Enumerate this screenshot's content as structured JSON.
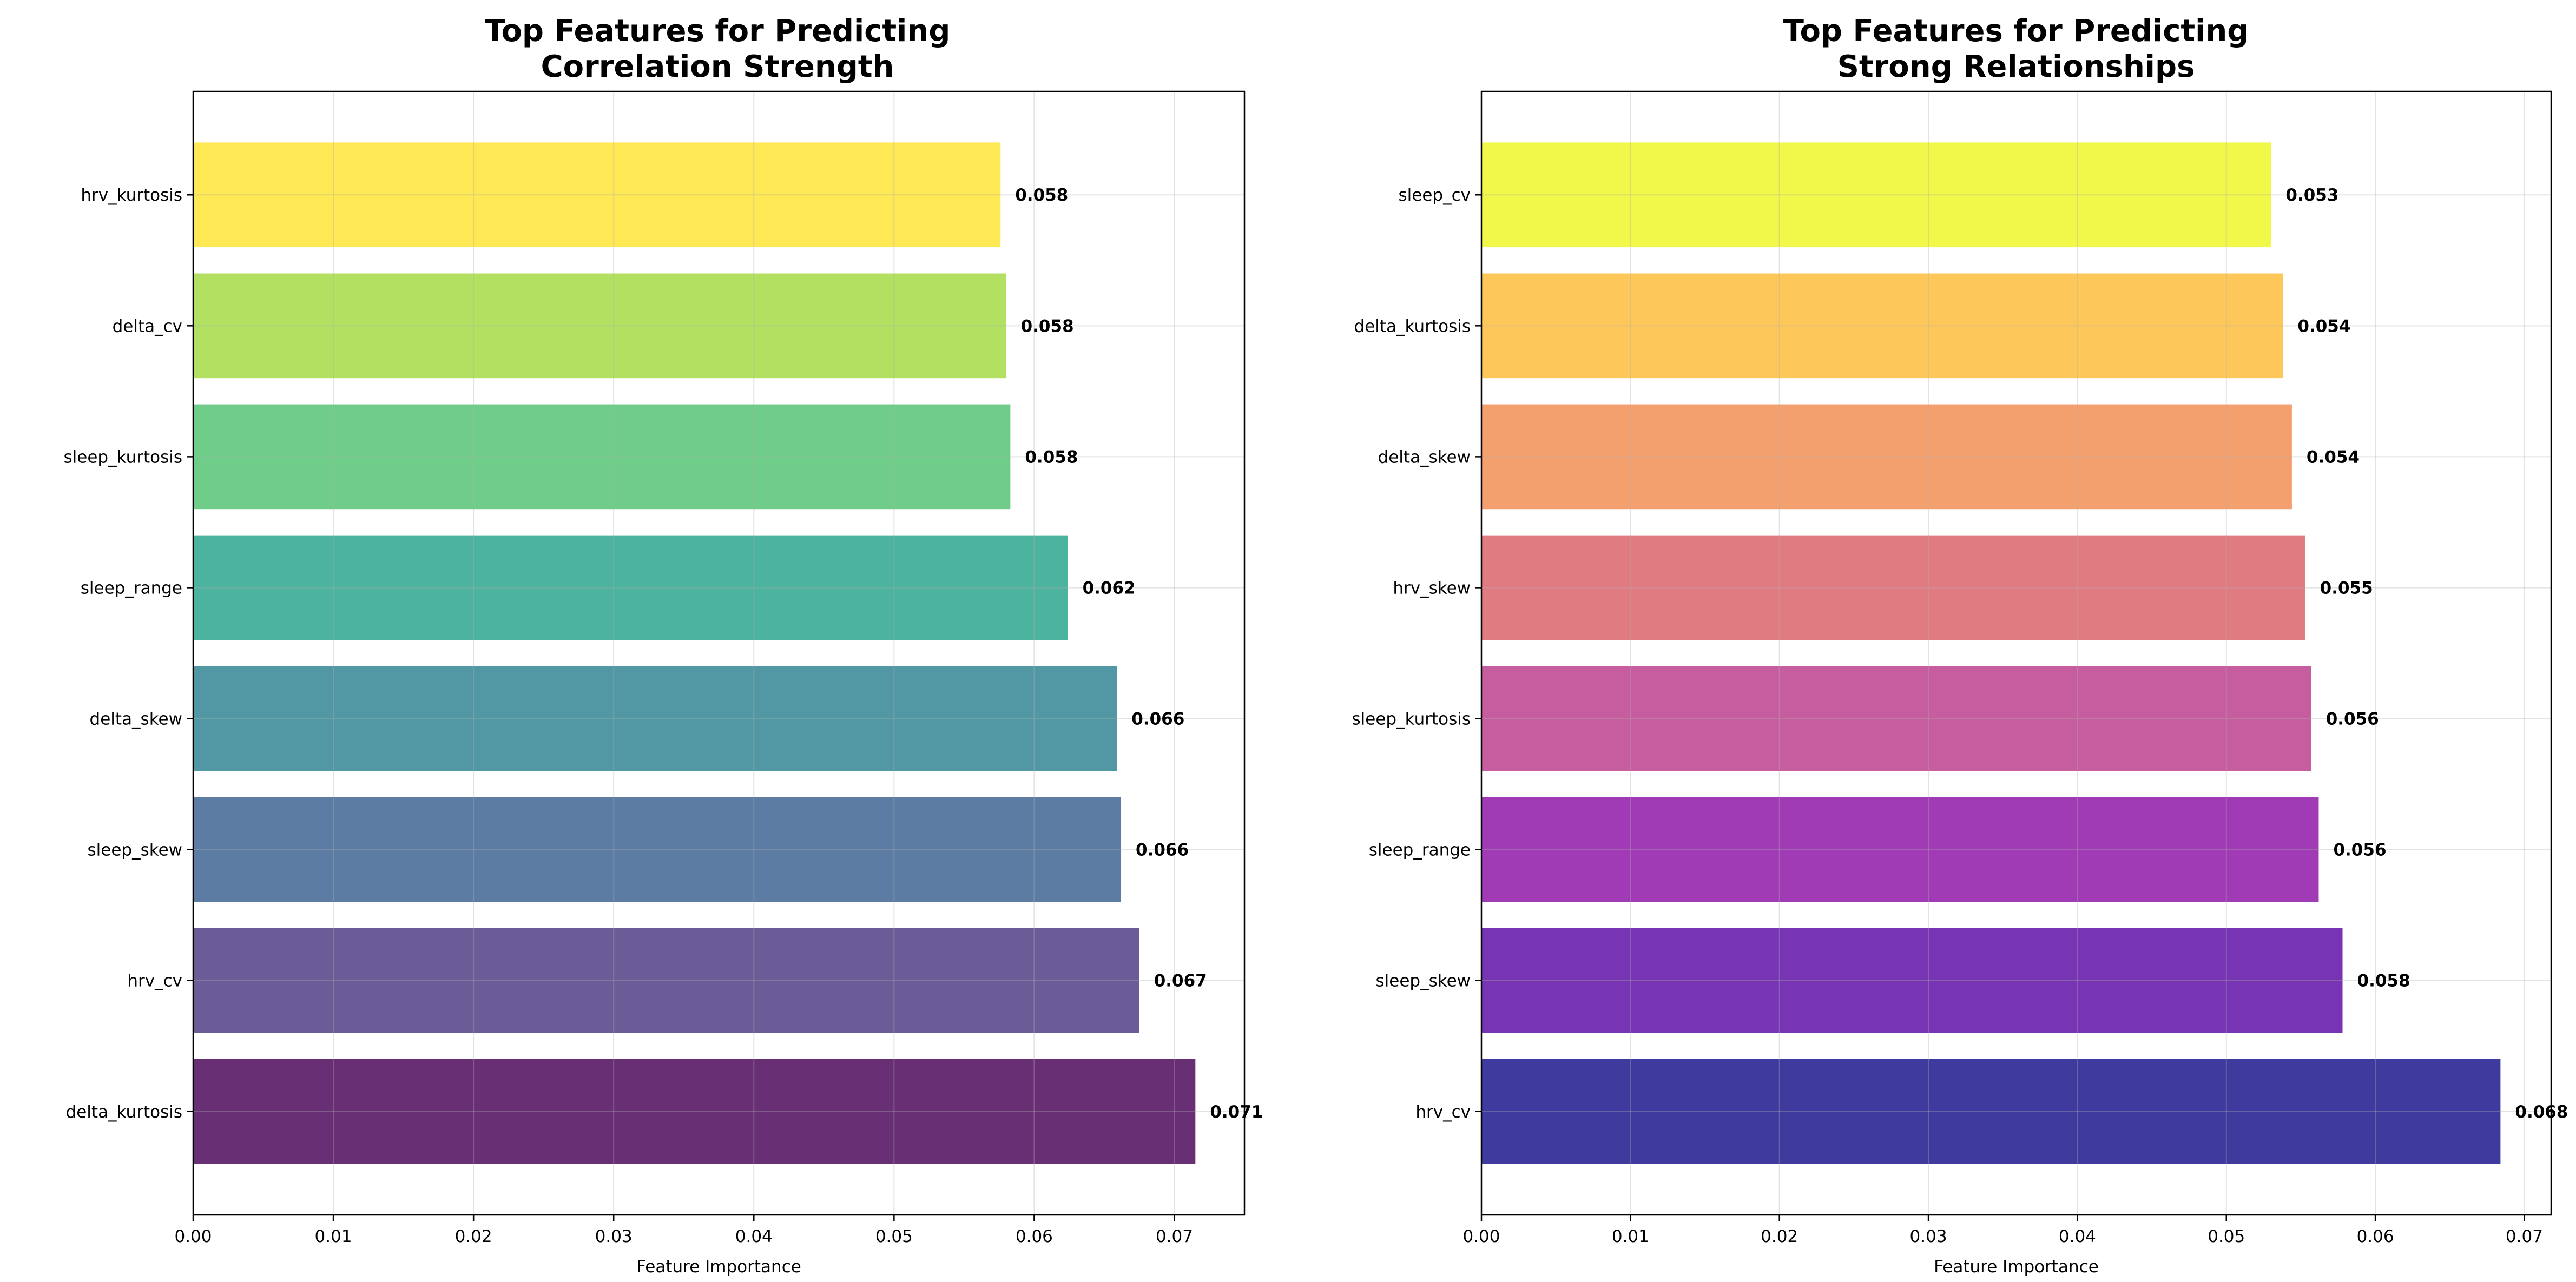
{
  "chart_data": [
    {
      "type": "bar",
      "orientation": "horizontal",
      "title": [
        "Top Features for Predicting",
        "Correlation Strength"
      ],
      "xlabel": "Feature Importance",
      "ylabel": "",
      "xlim": [
        0,
        0.075
      ],
      "xticks": [
        "0.00",
        "0.01",
        "0.02",
        "0.03",
        "0.04",
        "0.05",
        "0.06",
        "0.07"
      ],
      "grid": true,
      "categories": [
        "delta_kurtosis",
        "hrv_cv",
        "sleep_skew",
        "delta_skew",
        "sleep_range",
        "sleep_kurtosis",
        "delta_cv",
        "hrv_kurtosis"
      ],
      "values": [
        0.0715,
        0.0675,
        0.0662,
        0.0659,
        0.0624,
        0.0583,
        0.058,
        0.0576
      ],
      "value_labels": [
        "0.071",
        "0.067",
        "0.066",
        "0.066",
        "0.062",
        "0.058",
        "0.058",
        "0.058"
      ],
      "colors": [
        "#682f74",
        "#6b5c98",
        "#5c7ca3",
        "#5198a4",
        "#4cb39f",
        "#6fcd89",
        "#b2e061",
        "#fee854"
      ]
    },
    {
      "type": "bar",
      "orientation": "horizontal",
      "title": [
        "Top Features for Predicting",
        "Strong Relationships"
      ],
      "xlabel": "Feature Importance",
      "ylabel": "",
      "xlim": [
        0,
        0.0718
      ],
      "xticks": [
        "0.00",
        "0.01",
        "0.02",
        "0.03",
        "0.04",
        "0.05",
        "0.06",
        "0.07"
      ],
      "grid": true,
      "categories": [
        "hrv_cv",
        "sleep_skew",
        "sleep_range",
        "sleep_kurtosis",
        "hrv_skew",
        "delta_skew",
        "delta_kurtosis",
        "sleep_cv"
      ],
      "values": [
        0.0684,
        0.0578,
        0.0562,
        0.0557,
        0.0553,
        0.0544,
        0.0538,
        0.053
      ],
      "value_labels": [
        "0.068",
        "0.058",
        "0.056",
        "0.056",
        "0.055",
        "0.054",
        "0.054",
        "0.053"
      ],
      "colors": [
        "#3f3a9e",
        "#7735b4",
        "#a03bb5",
        "#c65d9e",
        "#e17b82",
        "#f4a06e",
        "#fdc859",
        "#f2f84a"
      ]
    }
  ]
}
